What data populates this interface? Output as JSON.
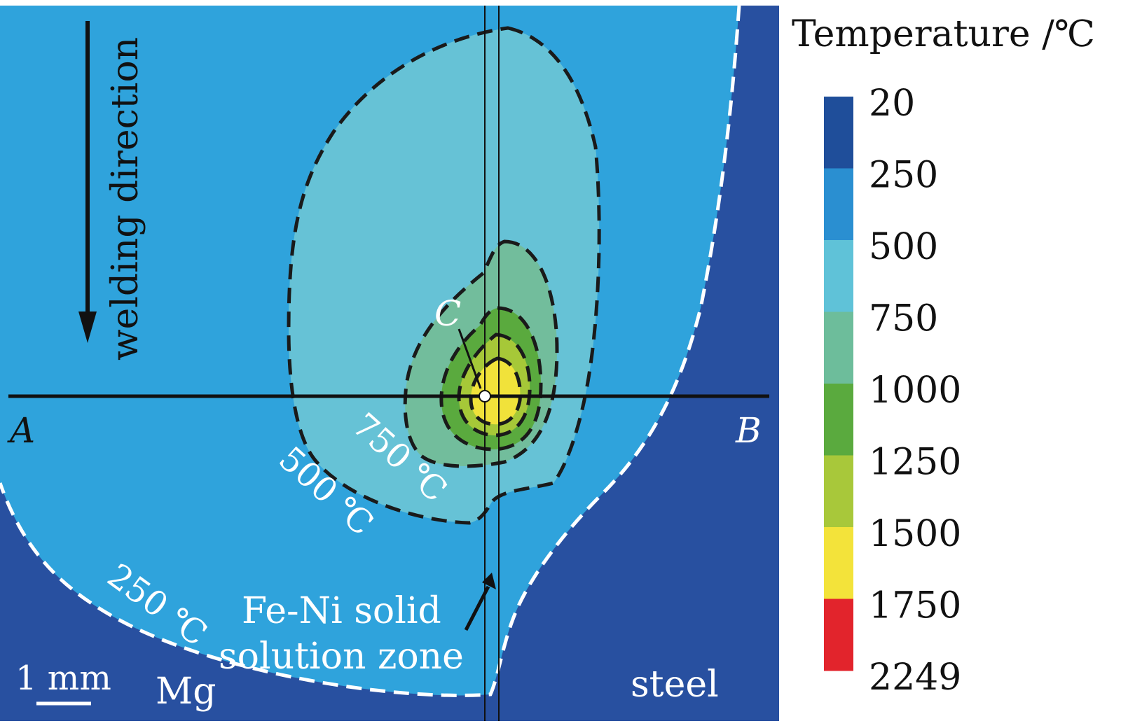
{
  "legend": {
    "title": "Temperature /℃",
    "ticks": [
      "20",
      "250",
      "500",
      "750",
      "1000",
      "1250",
      "1500",
      "1750",
      "2249"
    ],
    "colors": [
      "#1f4e9a",
      "#2a8fd1",
      "#5fc2d8",
      "#6dbd9b",
      "#5aaa3e",
      "#a8c83a",
      "#f3e33a",
      "#e2242c"
    ]
  },
  "field_colors": {
    "below_250": "#2850a0",
    "band_250_500": "#2fa3dc",
    "band_500_750": "#66c2d6",
    "band_750_1000": "#72bd9c",
    "band_1000_1250": "#5aaa3e",
    "band_1250_1500": "#a6c838",
    "band_1500_1750": "#f1e23a",
    "above_1750": "#e2242c"
  },
  "labels": {
    "welding_direction": "welding direction",
    "point_a": "A",
    "point_b": "B",
    "point_c": "C",
    "isotherm_750": "750 ℃",
    "isotherm_500": "500 ℃",
    "isotherm_250": "250 ℃",
    "zone_line1": "Fe-Ni solid",
    "zone_line2": "solution zone",
    "material_left": "Mg",
    "material_right": "steel",
    "scale_bar": "1 mm"
  }
}
